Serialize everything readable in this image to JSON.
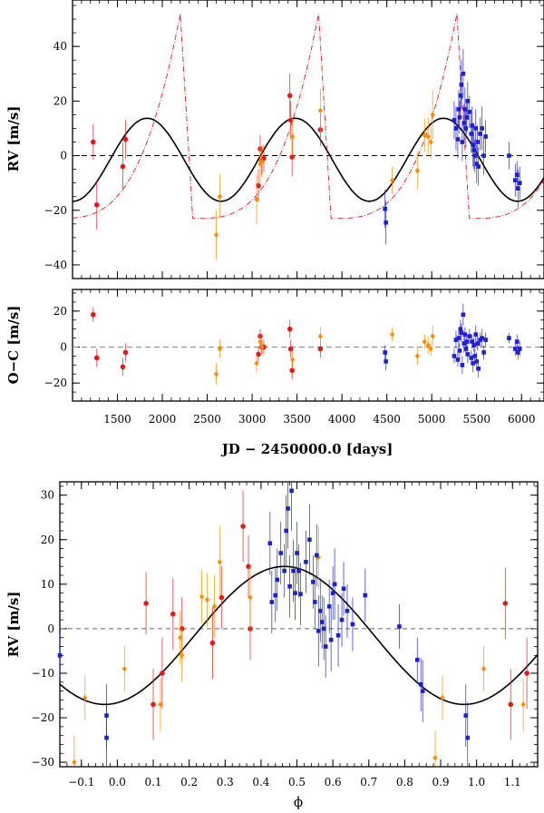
{
  "chart_data": [
    {
      "id": "rv-time",
      "type": "scatter",
      "ylabel": "RV [m/s]",
      "xlim": [
        1000,
        6250
      ],
      "ylim": [
        -45,
        57
      ],
      "yticks": [
        -40,
        -20,
        0,
        20,
        40
      ],
      "model": {
        "name": "Keplerian fit (black)",
        "amplitude": 15.2,
        "offset": -1.5,
        "period": 1650,
        "peak_jd": 3480
      },
      "alt_model": {
        "name": "alternative eccentric model (red dash-dot)",
        "baseline": -23,
        "peak": 52,
        "period": 1540,
        "peak_jd": 3740
      },
      "series": [
        {
          "name": "red",
          "color": "#e31a1c",
          "marker": "circle",
          "points": [
            [
              1230,
              5,
              6.5
            ],
            [
              1270,
              -18,
              9
            ],
            [
              1560,
              -4,
              9
            ],
            [
              1590,
              6,
              7
            ],
            [
              3070,
              -11,
              6
            ],
            [
              3090,
              2.5,
              5
            ],
            [
              3105,
              -2,
              5
            ],
            [
              3130,
              -1,
              5
            ],
            [
              3420,
              22,
              8
            ],
            [
              3430,
              13,
              7
            ],
            [
              3445,
              -0.5,
              7
            ],
            [
              3760,
              9.5,
              6
            ]
          ]
        },
        {
          "name": "orange",
          "color": "#ff8c00",
          "marker": "diamond",
          "points": [
            [
              2600,
              -29,
              9
            ],
            [
              2640,
              -15,
              8
            ],
            [
              3050,
              -16,
              9
            ],
            [
              3090,
              -3,
              7
            ],
            [
              3110,
              -2,
              6
            ],
            [
              3450,
              7,
              7
            ],
            [
              3760,
              16.5,
              8
            ],
            [
              4560,
              -9,
              5
            ],
            [
              4840,
              -5.5,
              7
            ],
            [
              4920,
              7.5,
              6
            ],
            [
              4960,
              7,
              7
            ],
            [
              4990,
              5,
              6
            ],
            [
              5010,
              15,
              9
            ]
          ]
        },
        {
          "name": "blue",
          "color": "#1f1fd6",
          "marker": "square",
          "points": [
            [
              4480,
              -19.5,
              7
            ],
            [
              4490,
              -24.5,
              8
            ],
            [
              5250,
              13,
              7
            ],
            [
              5270,
              10,
              8
            ],
            [
              5290,
              6,
              7
            ],
            [
              5300,
              17,
              7
            ],
            [
              5310,
              14,
              6
            ],
            [
              5320,
              22,
              8
            ],
            [
              5330,
              26,
              9
            ],
            [
              5340,
              5,
              7
            ],
            [
              5350,
              30,
              9
            ],
            [
              5360,
              12,
              7
            ],
            [
              5370,
              17,
              8
            ],
            [
              5380,
              10,
              7
            ],
            [
              5390,
              14,
              6
            ],
            [
              5400,
              20,
              7
            ],
            [
              5420,
              16,
              6
            ],
            [
              5440,
              8,
              7
            ],
            [
              5450,
              11,
              7
            ],
            [
              5460,
              4,
              8
            ],
            [
              5470,
              2,
              7
            ],
            [
              5480,
              0,
              6
            ],
            [
              5490,
              10,
              7
            ],
            [
              5500,
              -3,
              7
            ],
            [
              5510,
              5,
              6
            ],
            [
              5520,
              -4,
              7
            ],
            [
              5540,
              8,
              6
            ],
            [
              5560,
              10,
              8
            ],
            [
              5580,
              0,
              7
            ],
            [
              5600,
              7,
              6
            ],
            [
              5860,
              0,
              5
            ],
            [
              5930,
              -9,
              6
            ],
            [
              5950,
              -7,
              5
            ],
            [
              5960,
              -12,
              7
            ],
            [
              5980,
              -10,
              6
            ]
          ]
        }
      ]
    },
    {
      "id": "residuals",
      "type": "scatter",
      "ylabel": "O−C [m/s]",
      "xlabel": "JD − 2450000.0 [days]",
      "xlim": [
        1000,
        6250
      ],
      "ylim": [
        -30,
        32
      ],
      "yticks": [
        -20,
        0,
        20
      ],
      "xticks": [
        1500,
        2000,
        2500,
        3000,
        3500,
        4000,
        4500,
        5000,
        5500,
        6000
      ],
      "series": [
        {
          "name": "red",
          "color": "#e31a1c",
          "marker": "circle",
          "points": [
            [
              1230,
              18,
              4
            ],
            [
              1270,
              -6,
              5
            ],
            [
              1560,
              -11,
              5
            ],
            [
              1590,
              -3,
              5
            ],
            [
              3070,
              -4,
              4
            ],
            [
              3090,
              6,
              4
            ],
            [
              3105,
              0,
              4
            ],
            [
              3130,
              0,
              4
            ],
            [
              3420,
              10,
              5
            ],
            [
              3430,
              -1,
              5
            ],
            [
              3445,
              -13,
              5
            ],
            [
              3760,
              -1,
              5
            ]
          ]
        },
        {
          "name": "orange",
          "color": "#ff8c00",
          "marker": "diamond",
          "points": [
            [
              2600,
              -15,
              6
            ],
            [
              2640,
              -1,
              5
            ],
            [
              3050,
              -9,
              5
            ],
            [
              3090,
              3,
              4
            ],
            [
              3110,
              0,
              4
            ],
            [
              3450,
              -7,
              5
            ],
            [
              3760,
              6,
              5
            ],
            [
              4560,
              7,
              4
            ],
            [
              4840,
              -5,
              5
            ],
            [
              4920,
              3,
              4
            ],
            [
              4960,
              1,
              5
            ],
            [
              4990,
              -1,
              4
            ],
            [
              5010,
              6,
              6
            ]
          ]
        },
        {
          "name": "blue",
          "color": "#1f1fd6",
          "marker": "square",
          "points": [
            [
              4480,
              -3,
              4
            ],
            [
              4490,
              -8,
              5
            ],
            [
              5250,
              -5,
              4
            ],
            [
              5270,
              4,
              5
            ],
            [
              5290,
              -7,
              4
            ],
            [
              5300,
              5,
              5
            ],
            [
              5310,
              -2,
              4
            ],
            [
              5320,
              10,
              5
            ],
            [
              5330,
              8,
              5
            ],
            [
              5340,
              -10,
              5
            ],
            [
              5350,
              18,
              6
            ],
            [
              5360,
              2,
              5
            ],
            [
              5370,
              7,
              4
            ],
            [
              5380,
              -1,
              4
            ],
            [
              5390,
              3,
              4
            ],
            [
              5400,
              -4,
              5
            ],
            [
              5420,
              6,
              4
            ],
            [
              5440,
              -6,
              4
            ],
            [
              5450,
              3,
              4
            ],
            [
              5460,
              -9,
              5
            ],
            [
              5470,
              1,
              4
            ],
            [
              5480,
              -5,
              4
            ],
            [
              5490,
              7,
              5
            ],
            [
              5500,
              -8,
              5
            ],
            [
              5510,
              2,
              4
            ],
            [
              5520,
              -12,
              5
            ],
            [
              5540,
              4,
              4
            ],
            [
              5560,
              5,
              5
            ],
            [
              5580,
              -3,
              4
            ],
            [
              5600,
              4,
              4
            ],
            [
              5860,
              5,
              3
            ],
            [
              5930,
              -1,
              4
            ],
            [
              5950,
              3,
              4
            ],
            [
              5960,
              -3,
              4
            ],
            [
              5980,
              -1,
              4
            ]
          ]
        }
      ]
    },
    {
      "id": "phase",
      "type": "scatter",
      "ylabel": "RV [m/s]",
      "xlabel": "ϕ",
      "xlim": [
        -0.16,
        1.17
      ],
      "ylim": [
        -31,
        33
      ],
      "yticks": [
        -30,
        -20,
        -10,
        0,
        10,
        20,
        30
      ],
      "xticks": [
        -0.1,
        0.0,
        0.1,
        0.2,
        0.3,
        0.4,
        0.5,
        0.6,
        0.7,
        0.8,
        0.9,
        1.0,
        1.1
      ],
      "xtick_labels": [
        "−0.1",
        "0.0",
        "0.1",
        "0.2",
        "0.3",
        "0.4",
        "0.5",
        "0.6",
        "0.7",
        "0.8",
        "0.9",
        "1.0",
        "1.1"
      ],
      "model": {
        "name": "Keplerian fit (black)",
        "amplitude": 15.5,
        "offset": -1.5,
        "peak_phase": 0.465
      },
      "series": [
        {
          "name": "red",
          "color": "#e31a1c",
          "marker": "circle",
          "points": [
            [
              0.08,
              5.7,
              7
            ],
            [
              0.1,
              -17,
              8
            ],
            [
              0.125,
              -10,
              8
            ],
            [
              0.155,
              3.3,
              8
            ],
            [
              0.18,
              0,
              7
            ],
            [
              0.265,
              -3.2,
              8
            ],
            [
              0.29,
              7,
              7
            ],
            [
              0.35,
              23,
              8
            ],
            [
              0.365,
              14,
              7
            ],
            [
              0.37,
              0,
              7
            ],
            [
              1.08,
              5.7,
              8
            ],
            [
              1.095,
              -17,
              8
            ],
            [
              1.14,
              -10,
              8
            ]
          ]
        },
        {
          "name": "orange",
          "color": "#ff8c00",
          "marker": "diamond",
          "points": [
            [
              -0.12,
              -30,
              6
            ],
            [
              -0.09,
              -15.5,
              5
            ],
            [
              0.02,
              -9,
              5
            ],
            [
              0.12,
              -17,
              6
            ],
            [
              0.175,
              -2,
              6
            ],
            [
              0.18,
              -6,
              6
            ],
            [
              0.235,
              7.2,
              6
            ],
            [
              0.25,
              6.5,
              6
            ],
            [
              0.27,
              5,
              7
            ],
            [
              0.285,
              15,
              8
            ],
            [
              0.37,
              7,
              7
            ],
            [
              0.56,
              16,
              7
            ],
            [
              0.885,
              -29,
              6
            ],
            [
              0.905,
              -15.5,
              5
            ],
            [
              1.02,
              -9,
              5
            ],
            [
              1.13,
              -17,
              6
            ]
          ]
        },
        {
          "name": "blue",
          "color": "#1f1fd6",
          "marker": "square",
          "points": [
            [
              -0.16,
              -6,
              5
            ],
            [
              -0.03,
              -19.5,
              7
            ],
            [
              -0.03,
              -24.5,
              8
            ],
            [
              0.425,
              19.2,
              7
            ],
            [
              0.43,
              6,
              7
            ],
            [
              0.44,
              7.5,
              6
            ],
            [
              0.445,
              11,
              7
            ],
            [
              0.455,
              17,
              7
            ],
            [
              0.465,
              13,
              6
            ],
            [
              0.47,
              22,
              8
            ],
            [
              0.475,
              27,
              9
            ],
            [
              0.48,
              9.5,
              7
            ],
            [
              0.485,
              31,
              9
            ],
            [
              0.49,
              13,
              7
            ],
            [
              0.495,
              8,
              6
            ],
            [
              0.5,
              17,
              7
            ],
            [
              0.505,
              13,
              6
            ],
            [
              0.51,
              7.8,
              7
            ],
            [
              0.525,
              15,
              7
            ],
            [
              0.535,
              20,
              8
            ],
            [
              0.545,
              10.5,
              6
            ],
            [
              0.55,
              6,
              6
            ],
            [
              0.555,
              16.5,
              7
            ],
            [
              0.56,
              -0.5,
              8
            ],
            [
              0.565,
              4,
              7
            ],
            [
              0.57,
              1.5,
              6
            ],
            [
              0.575,
              0,
              7
            ],
            [
              0.58,
              -4,
              7
            ],
            [
              0.59,
              5,
              6
            ],
            [
              0.595,
              -2.5,
              7
            ],
            [
              0.6,
              8,
              6
            ],
            [
              0.605,
              10,
              8
            ],
            [
              0.615,
              -1.5,
              7
            ],
            [
              0.625,
              2,
              6
            ],
            [
              0.63,
              9,
              6
            ],
            [
              0.64,
              4,
              6
            ],
            [
              0.655,
              1,
              6
            ],
            [
              0.69,
              7.5,
              6
            ],
            [
              0.785,
              0.5,
              5
            ],
            [
              0.835,
              -7,
              5
            ],
            [
              0.845,
              -12.5,
              6
            ],
            [
              0.85,
              -14,
              7
            ],
            [
              0.97,
              -19.5,
              7
            ],
            [
              0.975,
              -24.5,
              8
            ]
          ]
        }
      ]
    }
  ]
}
